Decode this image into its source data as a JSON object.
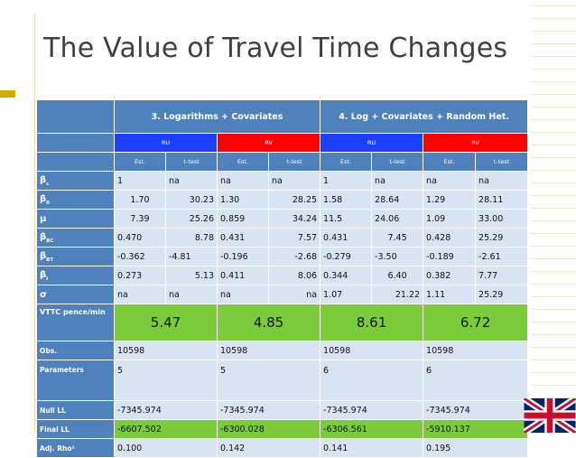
{
  "slide": {
    "title": "The Value of Travel Time Changes"
  },
  "table": {
    "group_headers": [
      "3. Logarithms + Covariates",
      "4. Log + Covariates + Random Het."
    ],
    "sub_headers": [
      "RU",
      "RV",
      "RU",
      "RV"
    ],
    "col_labels": [
      "Est.",
      "t-test",
      "Est.",
      "t-test",
      "Est.",
      "t-test",
      "Est.",
      "t-test"
    ],
    "rows": [
      {
        "label": "βC",
        "sym": "β",
        "sub": "c",
        "cells": [
          "1",
          "na",
          "na",
          "na",
          "1",
          "na",
          "na",
          "na"
        ]
      },
      {
        "label": "β0",
        "sym": "β",
        "sub": "0",
        "cells": [
          "1.70",
          "30.23",
          "1.30",
          "28.25",
          "1.58",
          "28.64",
          "1.29",
          "28.11"
        ]
      },
      {
        "label": "μ",
        "sym": "μ",
        "sub": "",
        "cells": [
          "7.39",
          "25.26",
          "0.859",
          "34.24",
          "11.5",
          "24.06",
          "1.09",
          "33.00"
        ]
      },
      {
        "label": "βBC",
        "sym": "β",
        "sub": "BC",
        "cells": [
          "0.470",
          "8.78",
          "0.431",
          "7.57",
          "0.431",
          "7.45",
          "0.428",
          "25.29"
        ]
      },
      {
        "label": "βBT",
        "sym": "β",
        "sub": "BT",
        "cells": [
          "-0.362",
          "-4.81",
          "-0.196",
          "-2.68",
          "-0.279",
          "-3.50",
          "-0.189",
          "-2.61"
        ]
      },
      {
        "label": "βI",
        "sym": "β",
        "sub": "I",
        "cells": [
          "0.273",
          "5.13",
          "0.411",
          "8.06",
          "0.344",
          "6.40",
          "0.382",
          "7.77"
        ]
      },
      {
        "label": "σ",
        "sym": "σ",
        "sub": "",
        "cells": [
          "na",
          "na",
          "na",
          "na",
          "1.07",
          "21.22",
          "1.11",
          "25.29"
        ]
      }
    ],
    "vttc": {
      "label": "VTTC pence/min",
      "values": [
        "5.47",
        "4.85",
        "8.61",
        "6.72"
      ]
    },
    "stats": [
      {
        "label": "Obs.",
        "values": [
          "10598",
          "10598",
          "10598",
          "10598"
        ]
      },
      {
        "label": "Parameters",
        "values": [
          "5",
          "5",
          "6",
          "6"
        ]
      },
      {
        "label": "Null LL",
        "values": [
          "-7345.974",
          "-7345.974",
          "-7345.974",
          "-7345.974"
        ]
      },
      {
        "label": "Final LL",
        "values": [
          "-6607.502",
          "-6300.028",
          "-6306.561",
          "-5910.137"
        ]
      },
      {
        "label": "Adj. Rho²",
        "values": [
          "0.100",
          "0.142",
          "0.141",
          "0.195"
        ]
      }
    ]
  },
  "colors": {
    "header_blue": "#4f81bd",
    "row_light": "#d8e4f2",
    "highlight_green": "#7ccb3a",
    "ru_blue": "#1e3fff",
    "rv_red": "#ff0000",
    "title_gray": "#404040",
    "accent_gold": "#d8a900"
  },
  "icons": {
    "flag": "uk-flag-icon"
  }
}
